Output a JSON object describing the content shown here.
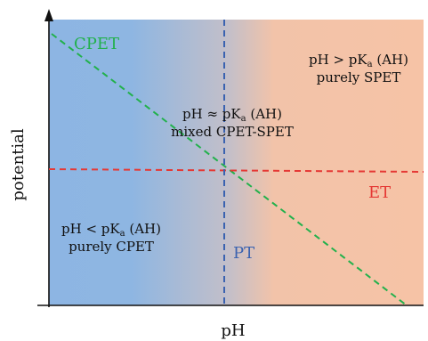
{
  "axes": {
    "xlabel": "pH",
    "ylabel": "potential"
  },
  "lines": {
    "cpet": {
      "label": "CPET",
      "color": "#22b14c"
    },
    "pt": {
      "label": "PT",
      "color": "#3a62b0"
    },
    "et": {
      "label": "ET",
      "color": "#e53935"
    }
  },
  "regions": {
    "low": {
      "line1": "pH < pK",
      "sub": "a",
      "line1_tail": " (AH)",
      "line2": "purely CPET",
      "color": "#8db5e3"
    },
    "mid": {
      "line1": "pH ≈ pK",
      "sub": "a",
      "line1_tail": " (AH)",
      "line2": "mixed CPET-SPET"
    },
    "high": {
      "line1": "pH > pK",
      "sub": "a",
      "line1_tail": " (AH)",
      "line2": "purely SPET",
      "color": "#f6c3a6"
    }
  }
}
